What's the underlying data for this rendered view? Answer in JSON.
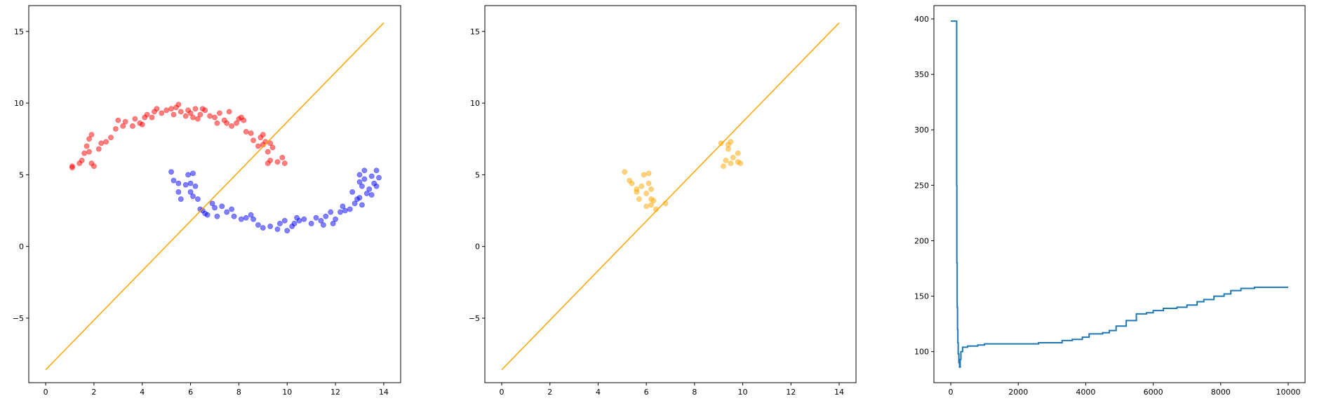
{
  "chart_data": [
    {
      "type": "scatter",
      "title": "",
      "xlabel": "",
      "ylabel": "",
      "xlim": [
        -0.7,
        14.7
      ],
      "ylim": [
        -9.5,
        16.8
      ],
      "xticks": [
        0,
        2,
        4,
        6,
        8,
        10,
        12,
        14
      ],
      "yticks": [
        -5,
        0,
        5,
        10,
        15
      ],
      "xtick_labels": [
        "0",
        "2",
        "4",
        "6",
        "8",
        "10",
        "12",
        "14"
      ],
      "ytick_labels": [
        "−5",
        "0",
        "5",
        "10",
        "15"
      ],
      "grid": false,
      "colors": {
        "red": "#ff0000",
        "blue": "#0000ff",
        "line": "#ffa500"
      },
      "line": {
        "x": [
          0,
          14
        ],
        "y": [
          -8.6,
          15.6
        ]
      },
      "series": [
        {
          "color": "red",
          "points": [
            [
              1.1,
              5.6
            ],
            [
              1.1,
              5.5
            ],
            [
              1.4,
              5.8
            ],
            [
              1.5,
              6.0
            ],
            [
              1.6,
              6.5
            ],
            [
              1.7,
              7.0
            ],
            [
              1.8,
              7.5
            ],
            [
              1.9,
              7.8
            ],
            [
              1.8,
              6.6
            ],
            [
              1.9,
              5.8
            ],
            [
              2.0,
              5.6
            ],
            [
              2.2,
              6.8
            ],
            [
              2.3,
              7.2
            ],
            [
              2.5,
              7.3
            ],
            [
              2.7,
              7.6
            ],
            [
              2.9,
              8.2
            ],
            [
              3.0,
              8.8
            ],
            [
              3.2,
              8.4
            ],
            [
              3.3,
              8.7
            ],
            [
              3.6,
              8.4
            ],
            [
              3.7,
              8.9
            ],
            [
              3.9,
              8.6
            ],
            [
              4.0,
              8.5
            ],
            [
              4.1,
              9.0
            ],
            [
              4.2,
              9.2
            ],
            [
              4.4,
              9.0
            ],
            [
              4.5,
              9.4
            ],
            [
              4.6,
              9.6
            ],
            [
              4.8,
              9.3
            ],
            [
              5.0,
              9.5
            ],
            [
              5.2,
              9.6
            ],
            [
              5.3,
              9.2
            ],
            [
              5.4,
              9.7
            ],
            [
              5.5,
              9.9
            ],
            [
              5.6,
              9.4
            ],
            [
              5.8,
              9.1
            ],
            [
              5.9,
              9.5
            ],
            [
              6.0,
              9.3
            ],
            [
              6.1,
              9.0
            ],
            [
              6.2,
              9.6
            ],
            [
              6.3,
              8.9
            ],
            [
              6.4,
              9.2
            ],
            [
              6.5,
              9.6
            ],
            [
              6.6,
              9.5
            ],
            [
              6.8,
              9.1
            ],
            [
              7.0,
              9.0
            ],
            [
              7.1,
              8.6
            ],
            [
              7.2,
              9.3
            ],
            [
              7.4,
              8.8
            ],
            [
              7.5,
              8.6
            ],
            [
              7.6,
              9.4
            ],
            [
              7.7,
              8.4
            ],
            [
              7.9,
              8.6
            ],
            [
              8.0,
              8.9
            ],
            [
              8.1,
              9.0
            ],
            [
              8.2,
              8.8
            ],
            [
              8.3,
              8.0
            ],
            [
              8.5,
              7.9
            ],
            [
              8.6,
              7.4
            ],
            [
              8.8,
              7.0
            ],
            [
              8.9,
              7.6
            ],
            [
              9.0,
              7.8
            ],
            [
              9.1,
              7.3
            ],
            [
              9.2,
              6.6
            ],
            [
              9.3,
              7.2
            ],
            [
              9.4,
              6.9
            ],
            [
              9.2,
              5.8
            ],
            [
              9.3,
              6.0
            ],
            [
              9.6,
              5.9
            ],
            [
              9.8,
              6.2
            ],
            [
              9.9,
              5.8
            ],
            [
              9.0,
              7.1
            ]
          ]
        },
        {
          "color": "blue",
          "points": [
            [
              5.2,
              5.2
            ],
            [
              5.3,
              4.6
            ],
            [
              5.5,
              4.4
            ],
            [
              5.5,
              3.8
            ],
            [
              5.6,
              3.3
            ],
            [
              5.8,
              4.3
            ],
            [
              5.9,
              5.0
            ],
            [
              6.0,
              4.4
            ],
            [
              6.1,
              5.1
            ],
            [
              6.0,
              3.8
            ],
            [
              6.1,
              3.5
            ],
            [
              6.2,
              4.2
            ],
            [
              6.3,
              3.3
            ],
            [
              6.4,
              2.6
            ],
            [
              6.5,
              2.5
            ],
            [
              6.6,
              2.3
            ],
            [
              6.7,
              2.2
            ],
            [
              6.9,
              3.0
            ],
            [
              7.0,
              2.7
            ],
            [
              7.1,
              2.1
            ],
            [
              7.3,
              2.8
            ],
            [
              7.5,
              2.4
            ],
            [
              7.7,
              2.6
            ],
            [
              7.8,
              2.1
            ],
            [
              8.1,
              1.9
            ],
            [
              8.3,
              2.0
            ],
            [
              8.5,
              2.2
            ],
            [
              8.6,
              1.9
            ],
            [
              8.8,
              1.5
            ],
            [
              9.0,
              1.3
            ],
            [
              9.3,
              1.4
            ],
            [
              9.6,
              1.2
            ],
            [
              9.7,
              1.6
            ],
            [
              9.9,
              1.8
            ],
            [
              10.0,
              1.1
            ],
            [
              10.2,
              1.4
            ],
            [
              10.3,
              1.6
            ],
            [
              10.4,
              2.0
            ],
            [
              10.5,
              1.8
            ],
            [
              10.7,
              1.9
            ],
            [
              11.0,
              1.6
            ],
            [
              11.2,
              2.0
            ],
            [
              11.4,
              1.8
            ],
            [
              11.5,
              1.5
            ],
            [
              11.6,
              2.1
            ],
            [
              11.8,
              2.4
            ],
            [
              11.9,
              1.6
            ],
            [
              12.0,
              1.9
            ],
            [
              12.2,
              2.4
            ],
            [
              12.3,
              2.8
            ],
            [
              12.4,
              2.5
            ],
            [
              12.6,
              2.6
            ],
            [
              12.7,
              3.8
            ],
            [
              12.8,
              3.0
            ],
            [
              12.9,
              3.3
            ],
            [
              13.0,
              4.5
            ],
            [
              13.0,
              5.0
            ],
            [
              13.1,
              4.2
            ],
            [
              13.2,
              5.3
            ],
            [
              13.2,
              4.7
            ],
            [
              13.3,
              3.7
            ],
            [
              13.4,
              4.0
            ],
            [
              13.5,
              4.9
            ],
            [
              13.5,
              3.6
            ],
            [
              13.6,
              4.4
            ],
            [
              13.7,
              5.3
            ],
            [
              13.8,
              4.8
            ],
            [
              13.7,
              4.2
            ],
            [
              13.1,
              2.9
            ],
            [
              13.0,
              3.4
            ]
          ]
        }
      ]
    },
    {
      "type": "scatter",
      "title": "",
      "xlabel": "",
      "ylabel": "",
      "xlim": [
        -0.7,
        14.7
      ],
      "ylim": [
        -9.5,
        16.8
      ],
      "xticks": [
        0,
        2,
        4,
        6,
        8,
        10,
        12,
        14
      ],
      "yticks": [
        -5,
        0,
        5,
        10,
        15
      ],
      "xtick_labels": [
        "0",
        "2",
        "4",
        "6",
        "8",
        "10",
        "12",
        "14"
      ],
      "ytick_labels": [
        "−5",
        "0",
        "5",
        "10",
        "15"
      ],
      "grid": false,
      "colors": {
        "points": "#ffa500",
        "line": "#ffa500"
      },
      "line": {
        "x": [
          0,
          14
        ],
        "y": [
          -8.6,
          15.6
        ]
      },
      "series": [
        {
          "color": "points",
          "points": [
            [
              5.1,
              5.2
            ],
            [
              5.3,
              4.6
            ],
            [
              5.4,
              4.4
            ],
            [
              5.6,
              3.8
            ],
            [
              5.7,
              3.3
            ],
            [
              5.8,
              4.2
            ],
            [
              5.9,
              5.0
            ],
            [
              6.0,
              3.7
            ],
            [
              6.1,
              5.1
            ],
            [
              6.1,
              4.4
            ],
            [
              6.2,
              3.3
            ],
            [
              6.2,
              4.0
            ],
            [
              6.3,
              3.2
            ],
            [
              6.0,
              2.8
            ],
            [
              6.2,
              2.9
            ],
            [
              6.4,
              2.6
            ],
            [
              6.8,
              3.0
            ],
            [
              5.6,
              4.0
            ],
            [
              9.2,
              5.6
            ],
            [
              9.3,
              6.0
            ],
            [
              9.4,
              6.8
            ],
            [
              9.4,
              7.1
            ],
            [
              9.5,
              7.3
            ],
            [
              9.6,
              6.2
            ],
            [
              9.5,
              5.8
            ],
            [
              9.8,
              5.9
            ],
            [
              9.9,
              5.8
            ],
            [
              9.8,
              6.5
            ],
            [
              9.1,
              7.2
            ]
          ]
        }
      ]
    },
    {
      "type": "line",
      "title": "",
      "xlabel": "",
      "ylabel": "",
      "xlim": [
        -500,
        10500
      ],
      "ylim": [
        72,
        412
      ],
      "xticks": [
        0,
        2000,
        4000,
        6000,
        8000,
        10000
      ],
      "yticks": [
        100,
        150,
        200,
        250,
        300,
        350,
        400
      ],
      "xtick_labels": [
        "0",
        "2000",
        "4000",
        "6000",
        "8000",
        "10000"
      ],
      "ytick_labels": [
        "100",
        "150",
        "200",
        "250",
        "300",
        "350",
        "400"
      ],
      "grid": false,
      "colors": {
        "line": "#1f77b4"
      },
      "series": [
        {
          "x": [
            0,
            170,
            175,
            180,
            190,
            200,
            210,
            220,
            240,
            260,
            280,
            300,
            350,
            500,
            800,
            1000,
            1500,
            2000,
            2400,
            2600,
            3000,
            3300,
            3600,
            3900,
            4100,
            4500,
            4700,
            4900,
            5200,
            5500,
            5800,
            6000,
            6300,
            6700,
            7000,
            7300,
            7500,
            7800,
            8100,
            8300,
            8600,
            9000,
            9500,
            10000
          ],
          "y": [
            398,
            398,
            250,
            180,
            140,
            120,
            108,
            98,
            90,
            86,
            93,
            100,
            104,
            105,
            106,
            107,
            107,
            107,
            107,
            108,
            108,
            110,
            111,
            113,
            116,
            117,
            119,
            123,
            128,
            134,
            135,
            137,
            139,
            140,
            142,
            145,
            147,
            150,
            152,
            155,
            157,
            158,
            158,
            158
          ]
        }
      ]
    }
  ]
}
